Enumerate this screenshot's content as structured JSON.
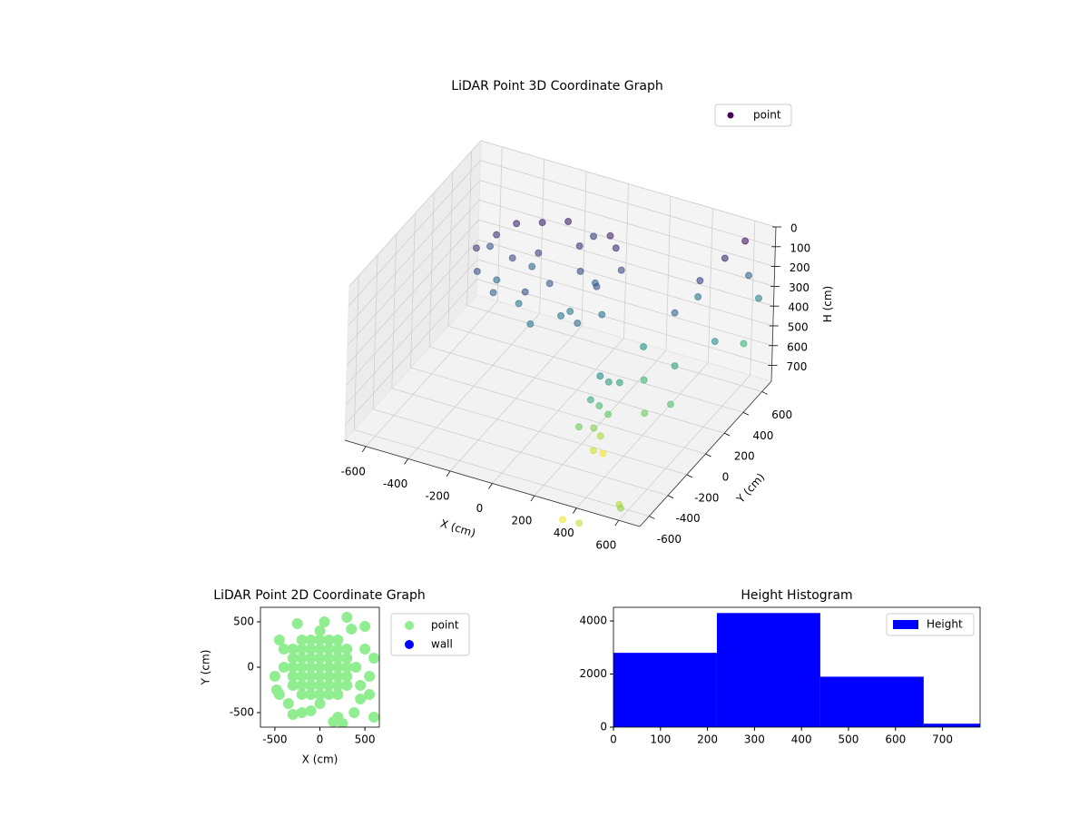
{
  "chart_data": [
    {
      "type": "scatter3d",
      "title": "LiDAR Point 3D Coordinate Graph",
      "xlabel": "X (cm)",
      "ylabel": "Y (cm)",
      "zlabel": "H (cm)",
      "xlim": [
        -700,
        700
      ],
      "ylim": [
        -700,
        700
      ],
      "zlim": [
        0,
        780
      ],
      "z_inverted": true,
      "xticks": [
        -600,
        -400,
        -200,
        0,
        200,
        400,
        600
      ],
      "yticks": [
        -600,
        -400,
        -200,
        0,
        200,
        400,
        600
      ],
      "zticks": [
        0,
        100,
        200,
        300,
        400,
        500,
        600,
        700
      ],
      "colormap": "viridis",
      "grid": true,
      "legend": "upper right",
      "series": [
        {
          "name": "point",
          "x": [
            -450,
            -400,
            -400,
            -350,
            -300,
            -300,
            -250,
            -200,
            -200,
            -150,
            -100,
            -100,
            -50,
            0,
            0,
            50,
            100,
            100,
            100,
            -350,
            -250,
            -150,
            0,
            50,
            150,
            -450,
            -50,
            150,
            300,
            320,
            280,
            300,
            330,
            290,
            310,
            300,
            320,
            350,
            250,
            450,
            500,
            550,
            600,
            450,
            600,
            650,
            500,
            550,
            400,
            600,
            650,
            350,
            450,
            600,
            650,
            500,
            400
          ],
          "y": [
            100,
            0,
            200,
            300,
            -50,
            150,
            350,
            0,
            200,
            400,
            -100,
            100,
            300,
            0,
            200,
            400,
            -50,
            150,
            350,
            100,
            250,
            -50,
            100,
            250,
            100,
            250,
            450,
            300,
            -250,
            -200,
            -300,
            -250,
            -220,
            -280,
            -250,
            -300,
            -240,
            -150,
            -350,
            200,
            350,
            500,
            600,
            450,
            300,
            500,
            100,
            -50,
            0,
            650,
            650,
            100,
            -100,
            -700,
            -800,
            -900,
            -850
          ],
          "z": [
            150,
            200,
            120,
            100,
            250,
            180,
            90,
            300,
            150,
            80,
            320,
            220,
            120,
            300,
            180,
            90,
            280,
            200,
            110,
            280,
            260,
            200,
            330,
            250,
            300,
            220,
            150,
            180,
            380,
            430,
            480,
            530,
            580,
            630,
            680,
            730,
            770,
            450,
            600,
            250,
            150,
            100,
            50,
            300,
            400,
            500,
            450,
            550,
            500,
            250,
            350,
            400,
            600,
            700,
            650,
            720,
            760
          ]
        }
      ]
    },
    {
      "type": "scatter",
      "title": "LiDAR Point 2D Coordinate Graph",
      "xlabel": "X (cm)",
      "ylabel": "Y (cm)",
      "xlim": [
        -660,
        660
      ],
      "ylim": [
        -660,
        660
      ],
      "xticks": [
        -500,
        0,
        500
      ],
      "yticks": [
        -500,
        0,
        500
      ],
      "legend": "outside right",
      "series": [
        {
          "name": "point",
          "color": "#90ee90",
          "x": [
            -400,
            -300,
            -300,
            -300,
            -300,
            -300,
            -200,
            -200,
            -200,
            -200,
            -200,
            -200,
            -200,
            -100,
            -100,
            -100,
            -100,
            -100,
            -100,
            -100,
            0,
            0,
            0,
            0,
            0,
            0,
            0,
            0,
            0,
            100,
            100,
            100,
            100,
            100,
            100,
            100,
            200,
            200,
            200,
            200,
            200,
            200,
            200,
            300,
            300,
            300,
            300,
            300,
            400,
            500,
            550,
            450,
            380,
            150,
            250,
            -200,
            -450,
            -500,
            -350,
            300,
            500,
            -250,
            50,
            550,
            600,
            -400,
            450,
            200,
            600,
            -480,
            350,
            -300,
            -100,
            -450
          ],
          "y": [
            0,
            -200,
            -100,
            0,
            100,
            200,
            -300,
            -200,
            -100,
            0,
            100,
            200,
            300,
            -300,
            -200,
            -100,
            0,
            100,
            200,
            300,
            -400,
            -300,
            -200,
            -100,
            0,
            100,
            200,
            300,
            400,
            -300,
            -200,
            -100,
            0,
            100,
            200,
            300,
            -300,
            -200,
            -100,
            0,
            100,
            200,
            300,
            -200,
            -100,
            0,
            100,
            200,
            0,
            200,
            -100,
            -350,
            -500,
            -600,
            -620,
            -500,
            300,
            -100,
            -400,
            550,
            450,
            480,
            500,
            -300,
            100,
            200,
            -200,
            -550,
            -550,
            -250,
            420,
            -520,
            -480,
            -300
          ]
        },
        {
          "name": "wall",
          "color": "#0000ff",
          "x": [],
          "y": []
        }
      ]
    },
    {
      "type": "histogram",
      "title": "Height Histogram",
      "name": "Height",
      "color": "#0000ff",
      "bins": [
        0,
        220,
        440,
        660,
        880
      ],
      "counts": [
        2800,
        4300,
        1900,
        130
      ],
      "xlim": [
        0,
        780
      ],
      "ylim": [
        0,
        4515
      ],
      "xticks": [
        0,
        100,
        200,
        300,
        400,
        500,
        600,
        700
      ],
      "yticks": [
        0,
        2000,
        4000
      ],
      "legend": "upper right"
    }
  ]
}
